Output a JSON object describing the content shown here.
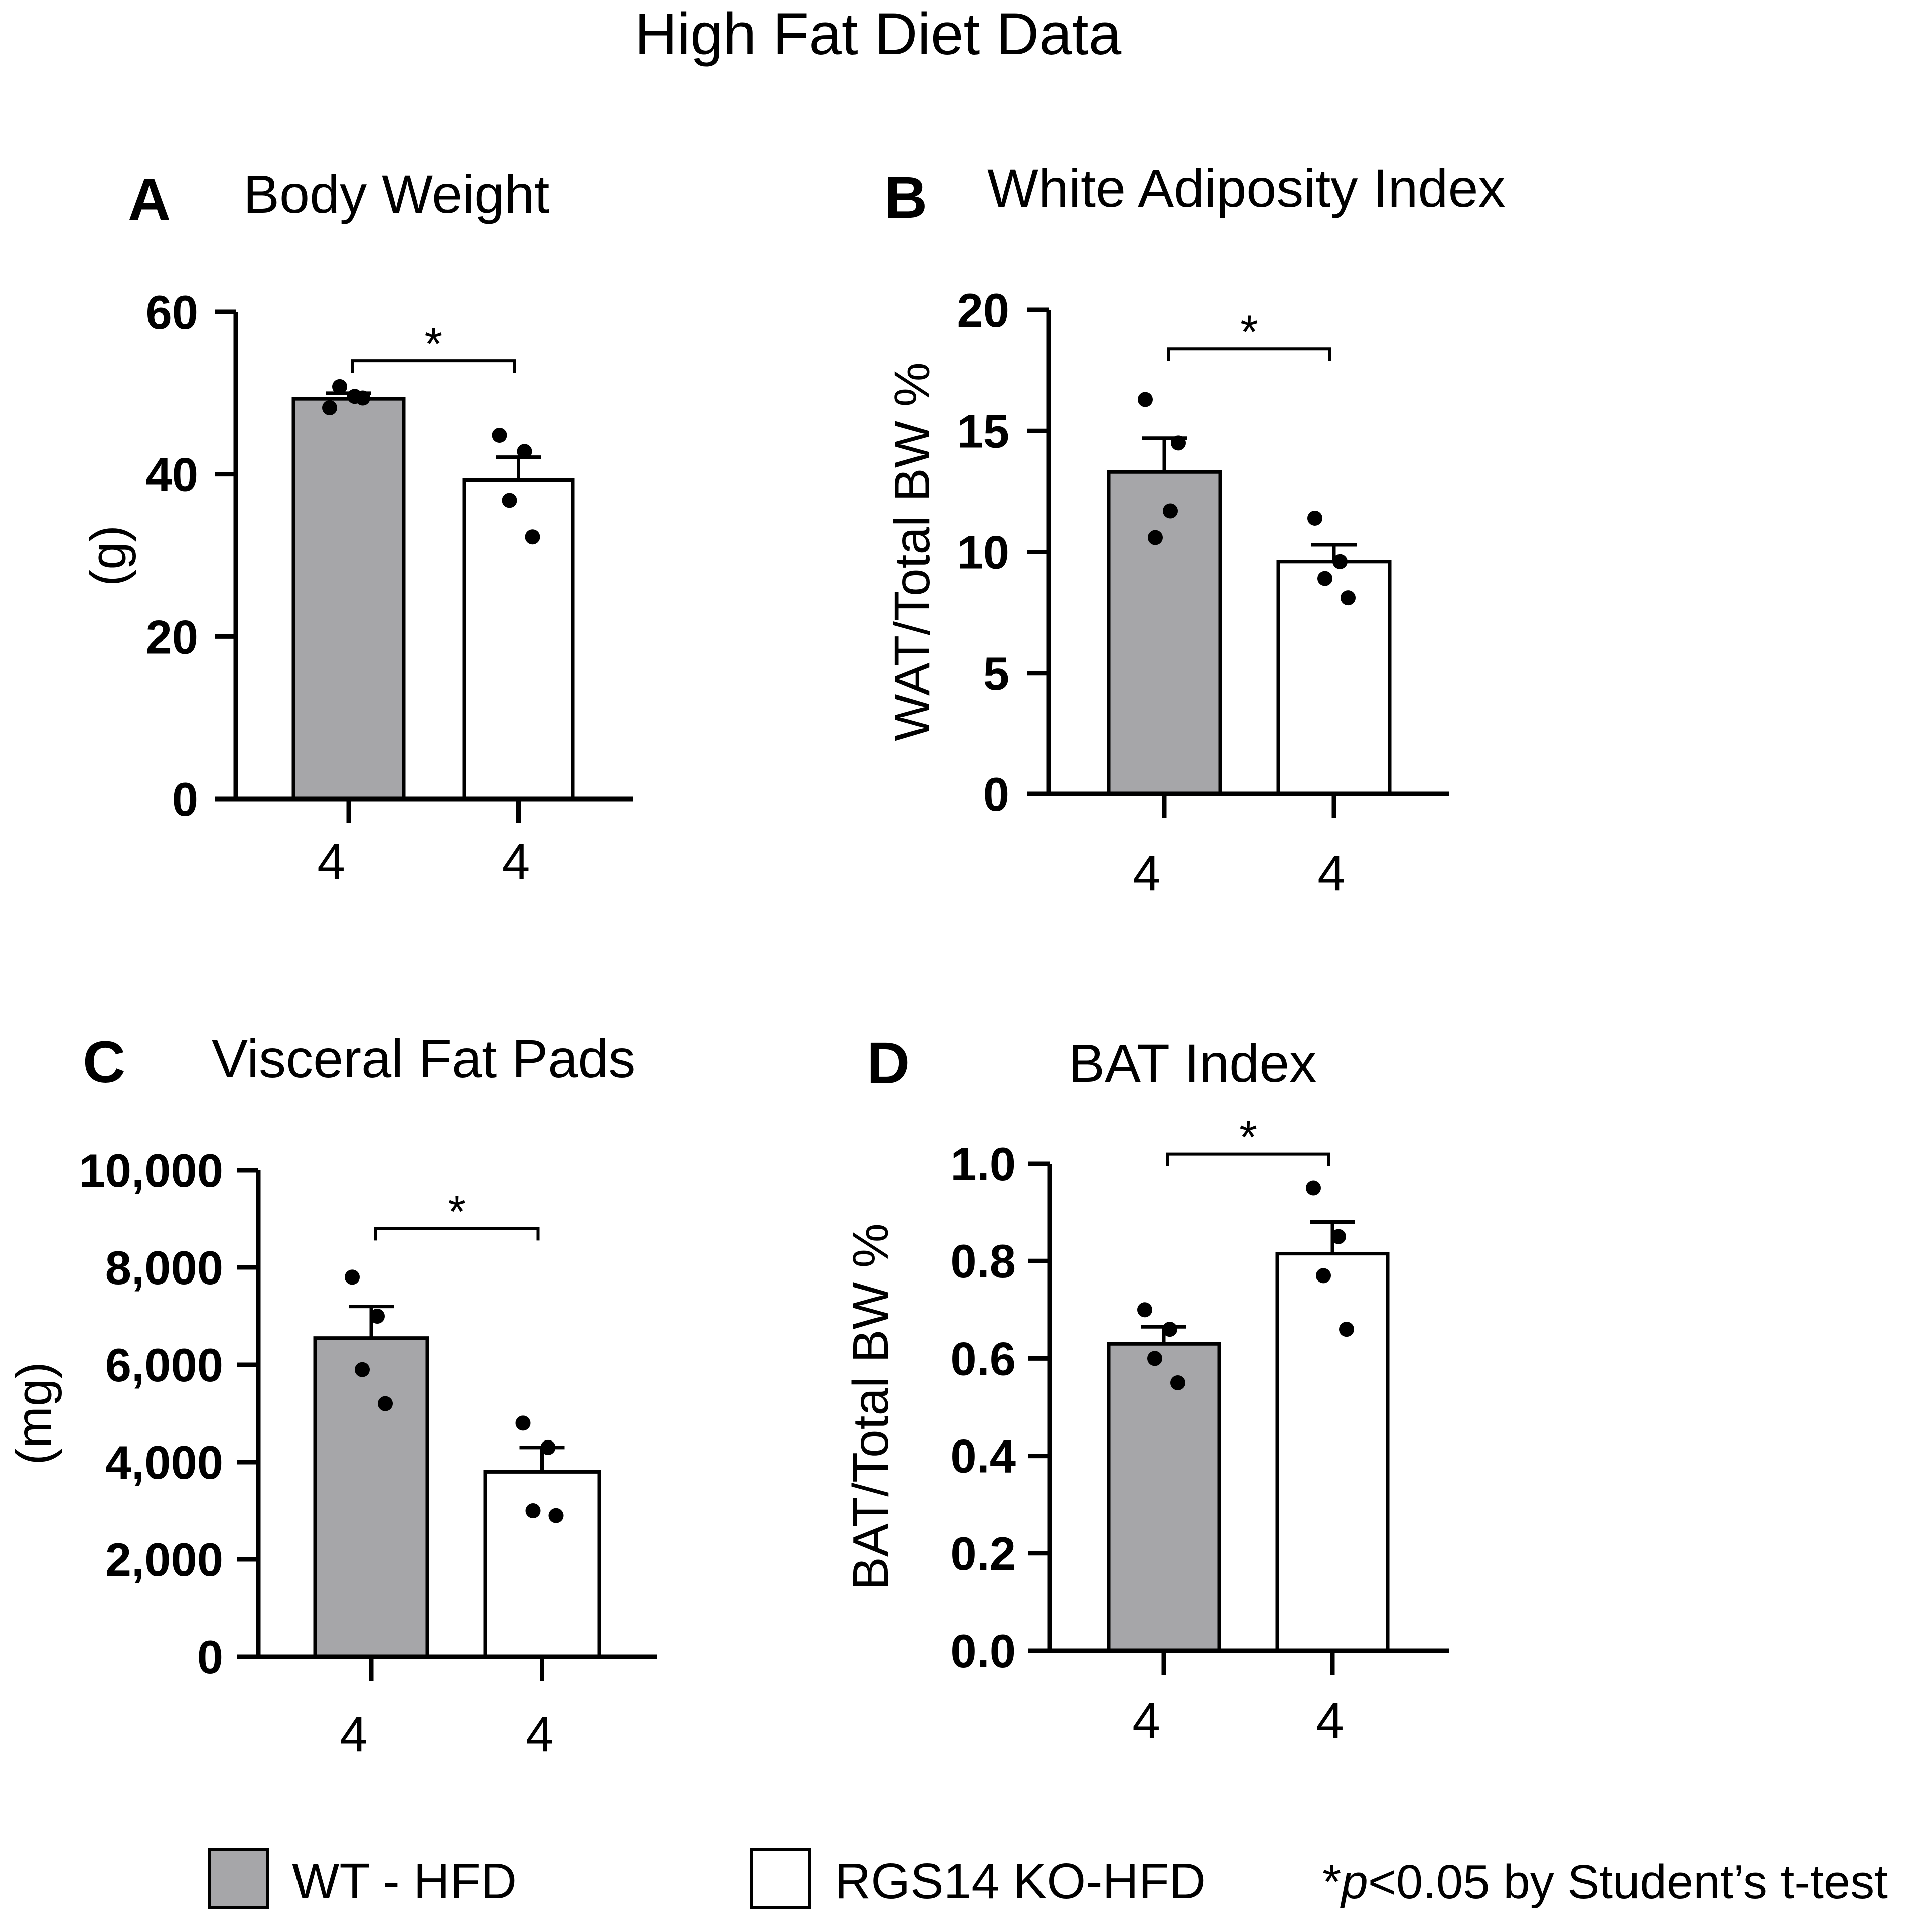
{
  "figure_title": "High Fat Diet Data",
  "legend": {
    "items": [
      {
        "label": "WT - HFD",
        "color": "#a6a6a9"
      },
      {
        "label": "RGS14 KO-HFD",
        "color": "#ffffff"
      }
    ],
    "note_prefix": "*",
    "note_italic": "p",
    "note_suffix": "<0.05 by Student’s t-test"
  },
  "colors": {
    "wt_fill": "#a6a6a9",
    "ko_fill": "#ffffff",
    "ink": "#000000"
  },
  "chart_data": [
    {
      "type": "bar",
      "panel": "A",
      "title": "Body Weight",
      "ylabel": "(g)",
      "ylim": [
        0,
        60
      ],
      "yticks": [
        0,
        20,
        40,
        60
      ],
      "ytick_labels": [
        "0",
        "20",
        "40",
        "60"
      ],
      "categories": [
        "4",
        "4"
      ],
      "series": [
        {
          "name": "WT - HFD",
          "value": 49.3,
          "sem": 0.7,
          "points": [
            48.2,
            49.6,
            50.8,
            49.4
          ]
        },
        {
          "name": "RGS14 KO-HFD",
          "value": 39.3,
          "sem": 2.8,
          "points": [
            44.8,
            42.8,
            36.8,
            32.3
          ]
        }
      ],
      "significance": {
        "label": "*",
        "y": 54
      }
    },
    {
      "type": "bar",
      "panel": "B",
      "title": "White Adiposity Index",
      "ylabel": "WAT/Total BW %",
      "ylim": [
        0,
        20
      ],
      "yticks": [
        0,
        5,
        10,
        15,
        20
      ],
      "ytick_labels": [
        "0",
        "5",
        "10",
        "15",
        "20"
      ],
      "categories": [
        "4",
        "4"
      ],
      "series": [
        {
          "name": "WT - HFD",
          "value": 13.3,
          "sem": 1.4,
          "points": [
            16.3,
            11.7,
            10.6,
            14.5
          ]
        },
        {
          "name": "RGS14 KO-HFD",
          "value": 9.6,
          "sem": 0.7,
          "points": [
            11.4,
            9.6,
            8.9,
            8.1
          ]
        }
      ],
      "significance": {
        "label": "*",
        "y": 18.4
      }
    },
    {
      "type": "bar",
      "panel": "C",
      "title": "Visceral Fat Pads",
      "ylabel": "(mg)",
      "ylim": [
        0,
        10000
      ],
      "yticks": [
        0,
        2000,
        4000,
        6000,
        8000,
        10000
      ],
      "ytick_labels": [
        "0",
        "2,000",
        "4,000",
        "6,000",
        "8,000",
        "10,000"
      ],
      "categories": [
        "4",
        "4"
      ],
      "series": [
        {
          "name": "WT - HFD",
          "value": 6550,
          "sem": 650,
          "points": [
            7800,
            7000,
            5900,
            5200
          ]
        },
        {
          "name": "RGS14 KO-HFD",
          "value": 3800,
          "sem": 500,
          "points": [
            4800,
            4300,
            3000,
            2900
          ]
        }
      ],
      "significance": {
        "label": "*",
        "y": 8800
      }
    },
    {
      "type": "bar",
      "panel": "D",
      "title": "BAT Index",
      "ylabel": "BAT/Total BW %",
      "ylim": [
        0,
        1.0
      ],
      "yticks": [
        0,
        0.2,
        0.4,
        0.6,
        0.8,
        1.0
      ],
      "ytick_labels": [
        "0.0",
        "0.2",
        "0.4",
        "0.6",
        "0.8",
        "1.0"
      ],
      "categories": [
        "4",
        "4"
      ],
      "series": [
        {
          "name": "WT - HFD",
          "value": 0.63,
          "sem": 0.035,
          "points": [
            0.7,
            0.66,
            0.6,
            0.55
          ]
        },
        {
          "name": "RGS14 KO-HFD",
          "value": 0.815,
          "sem": 0.065,
          "points": [
            0.95,
            0.85,
            0.77,
            0.66
          ]
        }
      ],
      "significance": {
        "label": "*",
        "y": 1.02
      }
    }
  ]
}
